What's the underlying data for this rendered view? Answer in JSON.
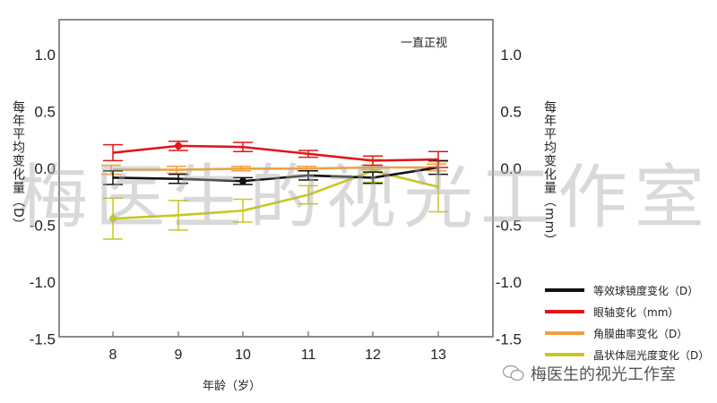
{
  "chart_data": {
    "type": "line",
    "title": "",
    "annotation": "一直正视",
    "xlabel": "年龄（岁）",
    "ylabel_left": "每年平均变化量（D）",
    "ylabel_right": "每年平均变化量（mm）",
    "x": [
      8,
      9,
      10,
      11,
      12,
      13
    ],
    "xticks": [
      "8",
      "9",
      "10",
      "11",
      "12",
      "13"
    ],
    "yticks": [
      "1.0",
      "0.5",
      "0.0",
      "-0.5",
      "-1.0",
      "-1.5"
    ],
    "ylim": [
      -1.5,
      1.25
    ],
    "grid": false,
    "legend_position": "right-bottom",
    "series": [
      {
        "name": "等效球镜度变化（D）",
        "color": "#111111",
        "axis": "left",
        "values": [
          -0.09,
          -0.1,
          -0.12,
          -0.07,
          -0.09,
          0.0
        ],
        "errors": [
          0.06,
          0.04,
          0.03,
          0.04,
          0.05,
          0.06
        ]
      },
      {
        "name": "眼轴变化（mm）",
        "color": "#e0161b",
        "axis": "right",
        "values": [
          0.13,
          0.19,
          0.18,
          0.12,
          0.06,
          0.07
        ],
        "errors": [
          0.07,
          0.04,
          0.04,
          0.03,
          0.04,
          0.07
        ]
      },
      {
        "name": "角膜曲率变化（D）",
        "color": "#f0a040",
        "axis": "left",
        "values": [
          -0.02,
          -0.02,
          -0.01,
          -0.01,
          0.0,
          0.0
        ],
        "errors": [
          0.04,
          0.03,
          0.02,
          0.02,
          0.02,
          0.03
        ]
      },
      {
        "name": "晶状体屈光度变化（D）",
        "color": "#c8c820",
        "axis": "left",
        "values": [
          -0.45,
          -0.42,
          -0.38,
          -0.24,
          -0.03,
          -0.17
        ],
        "errors": [
          0.18,
          0.13,
          0.1,
          0.08,
          0.1,
          0.22
        ]
      }
    ]
  },
  "legend": {
    "items": [
      {
        "label": "等效球镜度变化（D）",
        "color": "#111111"
      },
      {
        "label": "眼轴变化（mm）",
        "color": "#e0161b"
      },
      {
        "label": "角膜曲率变化（D）",
        "color": "#f0a040"
      },
      {
        "label": "晶状体屈光度变化（D）",
        "color": "#c8c820"
      }
    ]
  },
  "watermark": "梅医生的视光工作室",
  "footer": {
    "brand": "梅医生的视光工作室"
  }
}
